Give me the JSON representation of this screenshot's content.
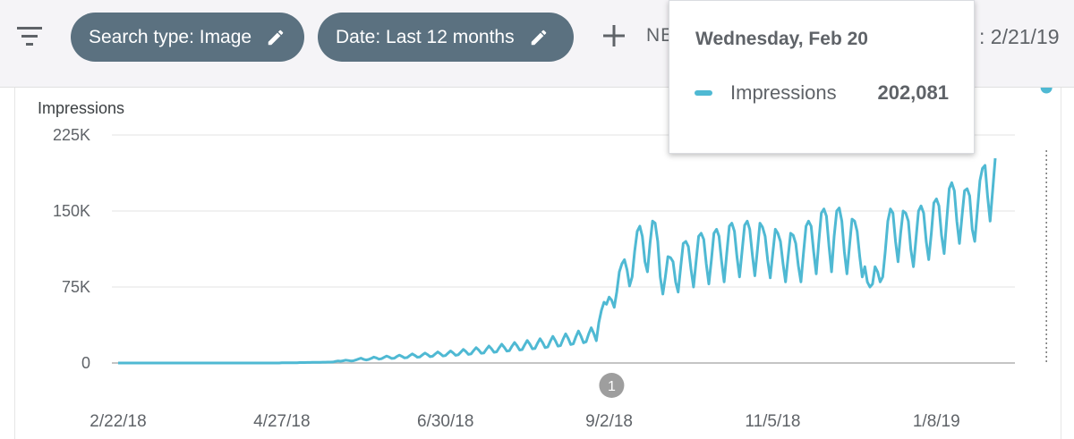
{
  "filters": {
    "chips": [
      {
        "label": "Search type: Image",
        "edit_icon": "pencil-icon"
      },
      {
        "label": "Date: Last 12 months",
        "edit_icon": "pencil-icon"
      }
    ],
    "add_label": "NE",
    "date_range_text": ": 2/21/19",
    "filter_icon": "filter-list-icon",
    "chip_color": "#5b7180"
  },
  "tooltip": {
    "date": "Wednesday, Feb 20",
    "series": "Impressions",
    "value": "202,081"
  },
  "annotation": {
    "label": "1",
    "x_index": 193
  },
  "chart_data": {
    "type": "line",
    "ylabel": "Impressions",
    "ylim": [
      0,
      225000
    ],
    "yticks": [
      {
        "value": 0,
        "label": "0"
      },
      {
        "value": 75000,
        "label": "75K"
      },
      {
        "value": 150000,
        "label": "150K"
      },
      {
        "value": 225000,
        "label": "225K"
      }
    ],
    "x_tick_labels": [
      {
        "index": 0,
        "label": "2/22/18"
      },
      {
        "index": 64,
        "label": "4/27/18"
      },
      {
        "index": 128,
        "label": "6/30/18"
      },
      {
        "index": 192,
        "label": "9/2/18"
      },
      {
        "index": 256,
        "label": "11/5/18"
      },
      {
        "index": 320,
        "label": "1/8/19"
      }
    ],
    "highlight_index": 363,
    "series": [
      {
        "name": "Impressions",
        "color": "#4fb9d3",
        "values": [
          0,
          0,
          0,
          0,
          0,
          0,
          0,
          0,
          0,
          0,
          0,
          0,
          0,
          0,
          0,
          0,
          0,
          0,
          0,
          0,
          0,
          0,
          0,
          0,
          0,
          0,
          0,
          0,
          0,
          0,
          0,
          0,
          0,
          0,
          0,
          0,
          0,
          0,
          0,
          0,
          0,
          0,
          0,
          0,
          0,
          0,
          0,
          0,
          0,
          0,
          0,
          0,
          0,
          0,
          0,
          0,
          0,
          0,
          0,
          0,
          0,
          0,
          0,
          0,
          200,
          200,
          300,
          300,
          300,
          300,
          300,
          400,
          400,
          400,
          500,
          500,
          600,
          600,
          700,
          700,
          800,
          800,
          900,
          900,
          1000,
          1600,
          2000,
          1800,
          2200,
          2800,
          2500,
          2000,
          2200,
          3000,
          4000,
          4800,
          3600,
          3000,
          3500,
          4600,
          5800,
          5000,
          3800,
          4200,
          5600,
          6900,
          5800,
          4500,
          4800,
          6400,
          7800,
          6500,
          5000,
          5400,
          7200,
          9000,
          7600,
          5700,
          6000,
          8000,
          9800,
          8300,
          6300,
          6700,
          8900,
          10900,
          9200,
          7000,
          7300,
          9700,
          11900,
          10000,
          7600,
          8100,
          10800,
          13400,
          11300,
          8500,
          9000,
          12200,
          15200,
          12800,
          9600,
          9900,
          13500,
          16800,
          14100,
          10600,
          11000,
          15000,
          18500,
          15500,
          11700,
          12100,
          16500,
          20200,
          17000,
          12800,
          13200,
          18000,
          22200,
          18600,
          14000,
          14300,
          19500,
          24000,
          20100,
          15200,
          15800,
          21500,
          26300,
          22000,
          16700,
          17200,
          23400,
          28800,
          24300,
          18300,
          19000,
          25800,
          31600,
          26600,
          20000,
          21000,
          28500,
          34800,
          29200,
          22000,
          40000,
          52000,
          60000,
          58000,
          65000,
          62000,
          55000,
          70000,
          90000,
          98000,
          102000,
          92000,
          76000,
          85000,
          110000,
          130000,
          135000,
          125000,
          100000,
          90000,
          118000,
          140000,
          138000,
          120000,
          85000,
          68000,
          85000,
          105000,
          104000,
          100000,
          80000,
          70000,
          95000,
          118000,
          120000,
          115000,
          93000,
          75000,
          100000,
          125000,
          128000,
          122000,
          98000,
          78000,
          102000,
          128000,
          132000,
          125000,
          100000,
          80000,
          108000,
          135000,
          138000,
          130000,
          105000,
          85000,
          110000,
          136000,
          140000,
          132000,
          107000,
          86000,
          112000,
          138000,
          134000,
          125000,
          102000,
          84000,
          108000,
          132000,
          128000,
          120000,
          98000,
          80000,
          105000,
          128000,
          126000,
          118000,
          96000,
          80000,
          108000,
          135000,
          140000,
          135000,
          110000,
          88000,
          120000,
          148000,
          152000,
          145000,
          115000,
          90000,
          125000,
          150000,
          153000,
          140000,
          110000,
          88000,
          115000,
          142000,
          140000,
          130000,
          105000,
          85000,
          95000,
          80000,
          75000,
          78000,
          95000,
          90000,
          80000,
          85000,
          110000,
          140000,
          152000,
          148000,
          120000,
          100000,
          128000,
          150000,
          148000,
          140000,
          112000,
          95000,
          122000,
          150000,
          155000,
          148000,
          120000,
          102000,
          128000,
          158000,
          162000,
          155000,
          126000,
          108000,
          140000,
          172000,
          178000,
          170000,
          140000,
          118000,
          145000,
          170000,
          172000,
          165000,
          132000,
          120000,
          150000,
          180000,
          192000,
          195000,
          165000,
          140000,
          170000,
          202081
        ]
      }
    ]
  }
}
